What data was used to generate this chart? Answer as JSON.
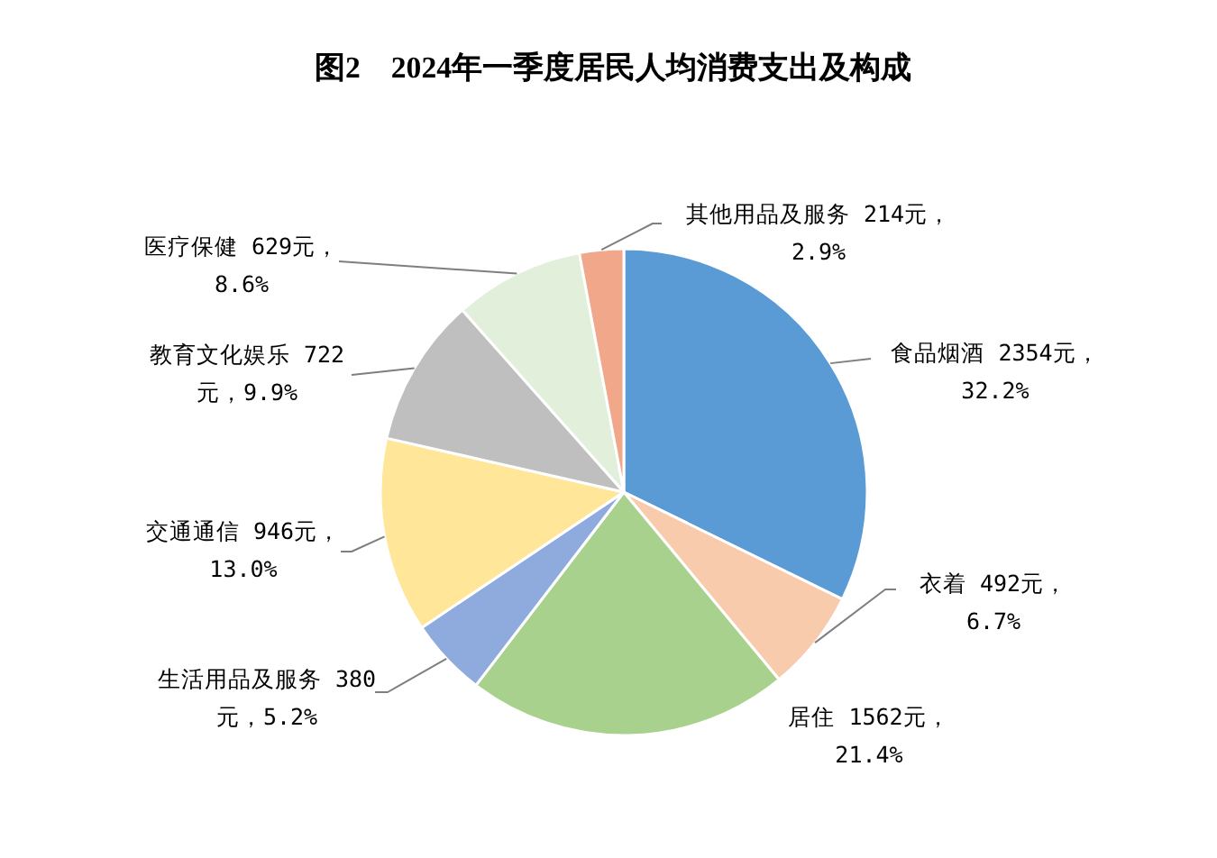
{
  "chart_data": {
    "type": "pie",
    "title": "图2　2024年一季度居民人均消费支出及构成",
    "categories": [
      "食品烟酒",
      "衣着",
      "居住",
      "生活用品及服务",
      "交通通信",
      "教育文化娱乐",
      "医疗保健",
      "其他用品及服务"
    ],
    "values": [
      2354,
      492,
      1562,
      380,
      946,
      722,
      629,
      214
    ],
    "colors": [
      "#5b9bd5",
      "#f8cbad",
      "#a9d18e",
      "#8faadc",
      "#ffe699",
      "#bfbfbf",
      "#e2efda",
      "#f1a78a"
    ],
    "value_labels": [
      "2354元，\n32.2%",
      "492元，\n6.7%",
      "1562元，\n21.4%",
      "380\n元，5.2%",
      "946元，\n13.0%",
      "722\n元，9.9%",
      "629元，\n8.6%",
      "214元，\n2.9%"
    ]
  }
}
